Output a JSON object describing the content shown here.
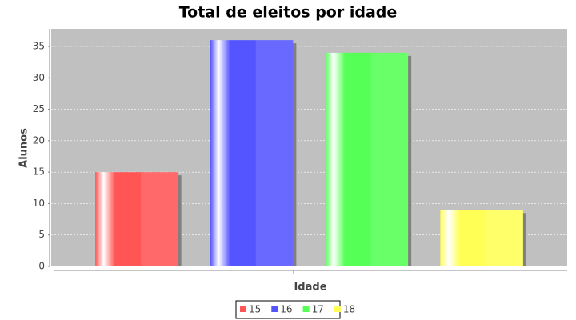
{
  "chart_data": {
    "type": "bar",
    "title": "Total de eleitos por idade",
    "x_label": "Idade",
    "y_label": "Alunos",
    "series": [
      {
        "name": "15",
        "color": "#ff5555",
        "values": [
          15
        ]
      },
      {
        "name": "16",
        "color": "#5555ff",
        "values": [
          36
        ]
      },
      {
        "name": "17",
        "color": "#55ff55",
        "values": [
          34
        ]
      },
      {
        "name": "18",
        "color": "#ffff55",
        "values": [
          9
        ]
      }
    ],
    "ylim": [
      0,
      37.8
    ],
    "yticks": [
      0,
      5,
      10,
      15,
      20,
      25,
      30,
      35
    ],
    "grid": true,
    "legend": "bottom"
  }
}
